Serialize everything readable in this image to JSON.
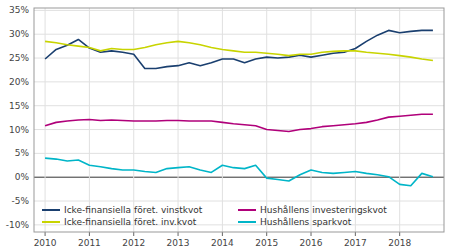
{
  "chart_data": {
    "type": "line",
    "x": [
      2010,
      2010.25,
      2010.5,
      2010.75,
      2011,
      2011.25,
      2011.5,
      2011.75,
      2012,
      2012.25,
      2012.5,
      2012.75,
      2013,
      2013.25,
      2013.5,
      2013.75,
      2014,
      2014.25,
      2014.5,
      2014.75,
      2015,
      2015.25,
      2015.5,
      2015.75,
      2016,
      2016.25,
      2016.5,
      2016.75,
      2017,
      2017.25,
      2017.5,
      2017.75,
      2018,
      2018.25,
      2018.5,
      2018.75
    ],
    "xlim": [
      2009.75,
      2019.0
    ],
    "xticks": [
      2010,
      2011,
      2012,
      2013,
      2014,
      2015,
      2016,
      2017,
      2018
    ],
    "ylim": [
      -0.115,
      0.355
    ],
    "yticks": [
      {
        "value": -0.1,
        "label": "-10%"
      },
      {
        "value": -0.05,
        "label": "-5%"
      },
      {
        "value": 0.0,
        "label": "0%"
      },
      {
        "value": 0.05,
        "label": "5%"
      },
      {
        "value": 0.1,
        "label": "10%"
      },
      {
        "value": 0.15,
        "label": "15%"
      },
      {
        "value": 0.2,
        "label": "20%"
      },
      {
        "value": 0.25,
        "label": "25%"
      },
      {
        "value": 0.3,
        "label": "30%"
      },
      {
        "value": 0.35,
        "label": "35%"
      }
    ],
    "grid": true,
    "legend": "lower left",
    "series": [
      {
        "name": "Icke-finansiella föret. vinstkvot",
        "color": "#1a3f6f",
        "values": [
          0.248,
          0.268,
          0.277,
          0.289,
          0.271,
          0.262,
          0.265,
          0.262,
          0.258,
          0.228,
          0.228,
          0.232,
          0.234,
          0.24,
          0.234,
          0.24,
          0.248,
          0.248,
          0.24,
          0.248,
          0.252,
          0.25,
          0.252,
          0.256,
          0.252,
          0.256,
          0.26,
          0.262,
          0.27,
          0.285,
          0.298,
          0.308,
          0.303,
          0.306,
          0.308,
          0.308
        ]
      },
      {
        "name": "Hushållens investeringskvot",
        "color": "#b0007a",
        "values": [
          0.108,
          0.115,
          0.118,
          0.12,
          0.121,
          0.119,
          0.12,
          0.119,
          0.118,
          0.118,
          0.118,
          0.119,
          0.119,
          0.118,
          0.118,
          0.118,
          0.115,
          0.112,
          0.11,
          0.108,
          0.1,
          0.098,
          0.096,
          0.1,
          0.102,
          0.106,
          0.108,
          0.11,
          0.112,
          0.115,
          0.12,
          0.126,
          0.128,
          0.13,
          0.132,
          0.132
        ]
      },
      {
        "name": "Icke-finansiella föret. inv.kvot",
        "color": "#c8d400",
        "values": [
          0.285,
          0.282,
          0.278,
          0.275,
          0.272,
          0.265,
          0.27,
          0.268,
          0.268,
          0.272,
          0.278,
          0.282,
          0.285,
          0.282,
          0.278,
          0.272,
          0.268,
          0.265,
          0.262,
          0.262,
          0.26,
          0.258,
          0.255,
          0.258,
          0.258,
          0.262,
          0.264,
          0.265,
          0.265,
          0.262,
          0.26,
          0.258,
          0.255,
          0.252,
          0.248,
          0.245
        ]
      },
      {
        "name": "Hushållens sparkvot",
        "color": "#00b5c8",
        "values": [
          0.04,
          0.038,
          0.034,
          0.036,
          0.025,
          0.022,
          0.018,
          0.015,
          0.015,
          0.012,
          0.01,
          0.018,
          0.02,
          0.022,
          0.015,
          0.01,
          0.025,
          0.02,
          0.018,
          0.025,
          -0.002,
          -0.005,
          -0.008,
          0.005,
          0.015,
          0.01,
          0.008,
          0.01,
          0.012,
          0.008,
          0.005,
          0.001,
          -0.015,
          -0.018,
          0.008,
          0.001
        ]
      }
    ]
  }
}
